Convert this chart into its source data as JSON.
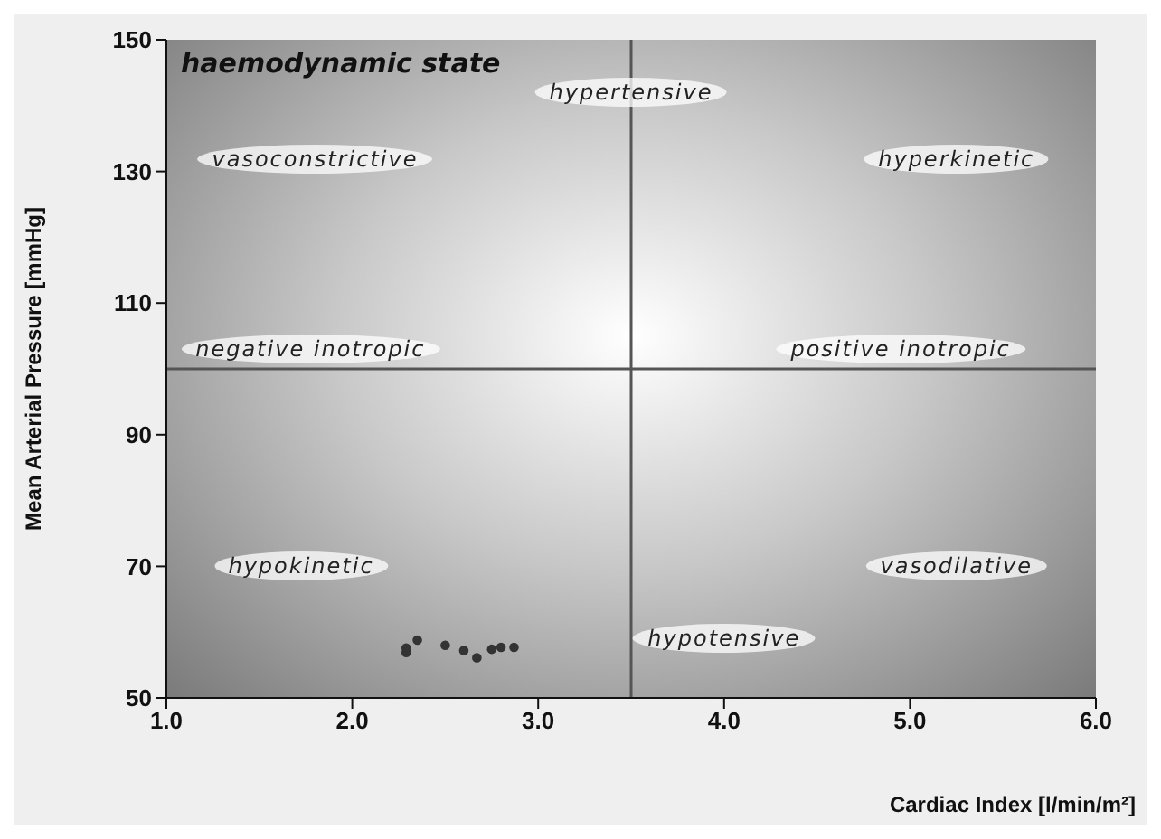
{
  "chart_data": {
    "type": "scatter",
    "title": "haemodynamic state",
    "xlabel": "Cardiac Index [l/min/m²]",
    "ylabel": "Mean Arterial Pressure [mmHg]",
    "x": [
      2.29,
      2.35,
      2.29,
      2.5,
      2.6,
      2.67,
      2.75,
      2.8,
      2.87
    ],
    "values": [
      57.6,
      58.8,
      56.9,
      58.0,
      57.2,
      56.1,
      57.4,
      57.7,
      57.7
    ],
    "color": "#333333",
    "marker": "circle",
    "grid": false,
    "legend": false,
    "xlim": [
      1,
      6
    ],
    "xticks": [
      {
        "value": 1,
        "label": "1.0"
      },
      {
        "value": 2,
        "label": "2.0"
      },
      {
        "value": 3,
        "label": "3.0"
      },
      {
        "value": 4,
        "label": "4.0"
      },
      {
        "value": 5,
        "label": "5.0"
      },
      {
        "value": 6,
        "label": "6.0"
      }
    ],
    "ylim": [
      50,
      150
    ],
    "yticks": [
      50,
      70,
      90,
      110,
      130,
      150
    ],
    "ref_lines": [
      {
        "axis": "x",
        "value": 3.5,
        "color": "#555555"
      },
      {
        "axis": "y",
        "value": 100,
        "color": "#555555"
      }
    ],
    "annotations": [
      "hypertensive",
      "vasoconstrictive",
      "hyperkinetic",
      "negative inotropic",
      "positive inotropic",
      "hypokinetic",
      "vasodilative",
      "hypotensive"
    ]
  }
}
